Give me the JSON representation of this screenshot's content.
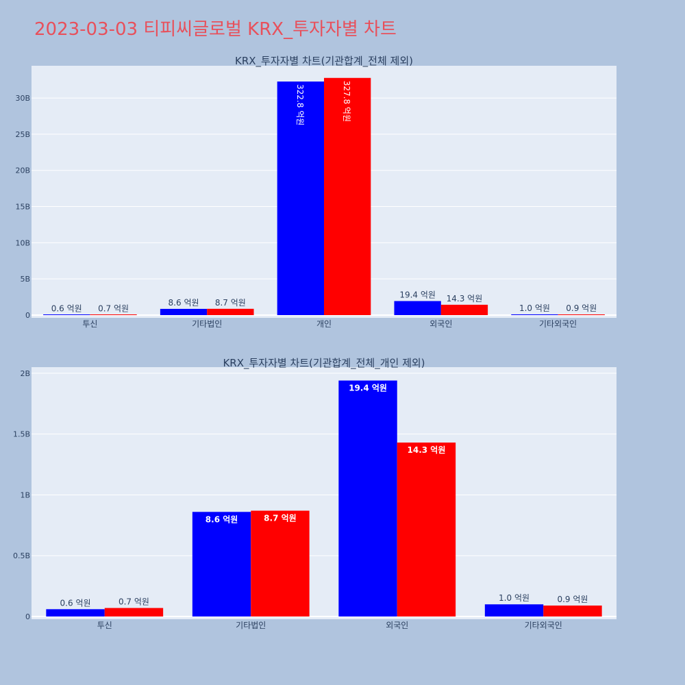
{
  "page_title": "2023-03-03 티피씨글로벌 KRX_투자자별 차트",
  "colors": {
    "background": "#b0c4de",
    "plot_bg": "#e5ecf6",
    "title": "#e8505b",
    "series_a": "#0000ff",
    "series_b": "#ff0000",
    "text": "#2a3f5f"
  },
  "chart_data": [
    {
      "type": "bar",
      "title": "KRX_투자자별 차트(기관합계_전체 제외)",
      "categories": [
        "투신",
        "기타법인",
        "개인",
        "외국인",
        "기타외국인"
      ],
      "series": [
        {
          "color": "#0000ff",
          "values": [
            60000000,
            860000000,
            32280000000,
            1940000000,
            100000000
          ],
          "labels": [
            "0.6 억원",
            "8.6 억원",
            "322.8 억원",
            "19.4 억원",
            "1.0 억원"
          ]
        },
        {
          "color": "#ff0000",
          "values": [
            70000000,
            870000000,
            32780000000,
            1430000000,
            90000000
          ],
          "labels": [
            "0.7 억원",
            "8.7 억원",
            "327.8 억원",
            "14.3 억원",
            "0.9 억원"
          ]
        }
      ],
      "yticks": [
        0,
        5000000000,
        10000000000,
        15000000000,
        20000000000,
        25000000000,
        30000000000
      ],
      "ytick_labels": [
        "0",
        "5B",
        "10B",
        "15B",
        "20B",
        "25B",
        "30B"
      ],
      "ylim": [
        0,
        34460000000
      ],
      "grid": true
    },
    {
      "type": "bar",
      "title": "KRX_투자자별 차트(기관합계_전체_개인 제외)",
      "categories": [
        "투신",
        "기타법인",
        "외국인",
        "기타외국인"
      ],
      "series": [
        {
          "color": "#0000ff",
          "values": [
            60000000,
            860000000,
            1940000000,
            100000000
          ],
          "labels": [
            "0.6 억원",
            "8.6 억원",
            "19.4 억원",
            "1.0 억원"
          ]
        },
        {
          "color": "#ff0000",
          "values": [
            70000000,
            870000000,
            1430000000,
            90000000
          ],
          "labels": [
            "0.7 억원",
            "8.7 억원",
            "14.3 억원",
            "0.9 억원"
          ]
        }
      ],
      "yticks": [
        0,
        500000000,
        1000000000,
        1500000000,
        2000000000
      ],
      "ytick_labels": [
        "0",
        "0.5B",
        "1B",
        "1.5B",
        "2B"
      ],
      "ylim": [
        0,
        2050000000
      ],
      "grid": true
    }
  ]
}
